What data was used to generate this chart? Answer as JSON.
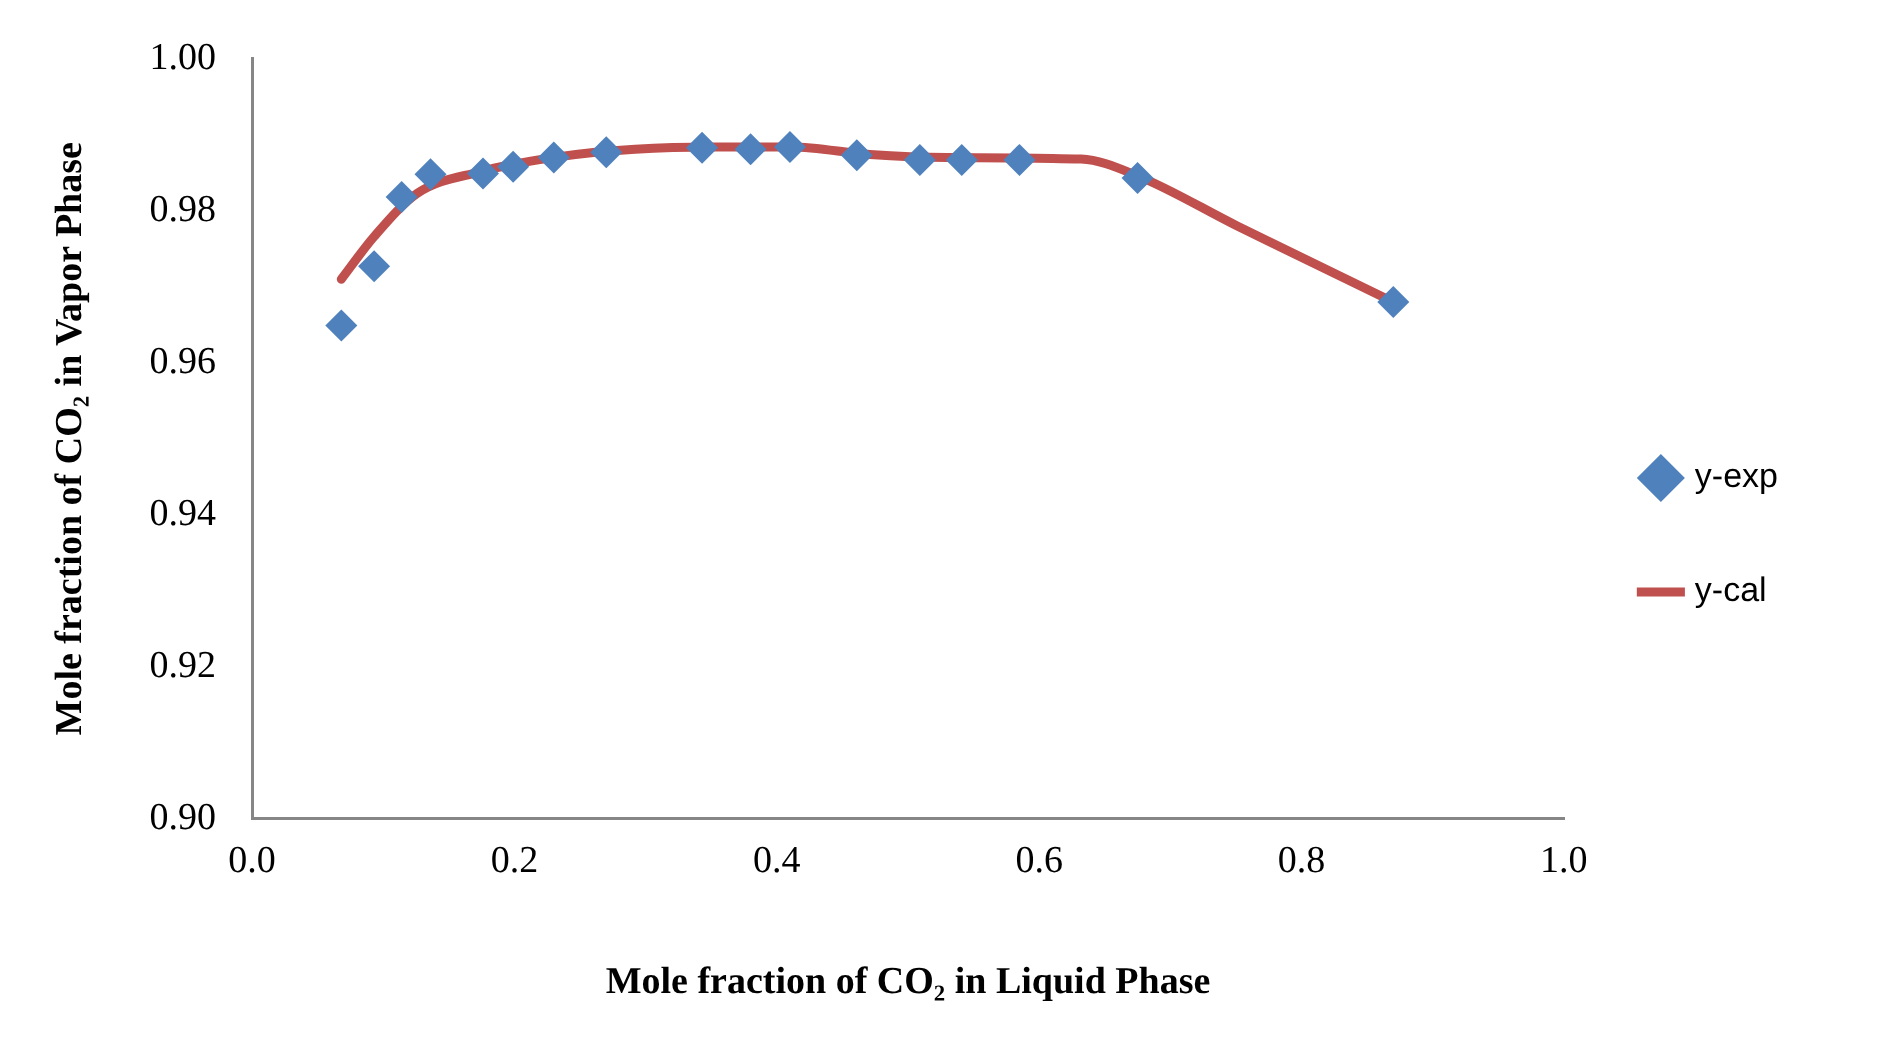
{
  "chart_data": {
    "type": "scatter",
    "xlabel": "Mole fraction of CO₂ in Liquid Phase",
    "ylabel": "Mole fraction of CO₂ in Vapor Phase",
    "xlim": [
      0,
      1
    ],
    "xticks": [
      {
        "value": 0,
        "label": "0.0"
      },
      0.2,
      0.4,
      0.6,
      0.8,
      {
        "value": 1,
        "label": "1.0"
      }
    ],
    "ylim": [
      0.9,
      1
    ],
    "yticks": [
      {
        "value": 0.9,
        "label": "0.90"
      },
      0.92,
      0.94,
      0.96,
      0.98,
      {
        "value": 1,
        "label": "1.00"
      }
    ],
    "grid": false,
    "legend": "right",
    "series": [
      {
        "name": "y-exp",
        "type": "scatter",
        "marker": "diamond",
        "color": "#4f81bd",
        "x": [
          0.068,
          0.093,
          0.114,
          0.136,
          0.176,
          0.199,
          0.23,
          0.27,
          0.343,
          0.38,
          0.41,
          0.461,
          0.509,
          0.541,
          0.585,
          0.675,
          0.87
        ],
        "values": [
          0.9649,
          0.9727,
          0.9818,
          0.9848,
          0.9849,
          0.9858,
          0.987,
          0.9877,
          0.9883,
          0.9881,
          0.9884,
          0.9873,
          0.9867,
          0.9867,
          0.9867,
          0.9843,
          0.968
        ]
      },
      {
        "name": "y-cal",
        "type": "line",
        "marker": "none",
        "line_style": "solid",
        "color": "#c0504d",
        "x": [
          0.068,
          0.093,
          0.126,
          0.173,
          0.233,
          0.292,
          0.352,
          0.411,
          0.471,
          0.53,
          0.632,
          0.675,
          0.751,
          0.87
        ],
        "values": [
          0.971,
          0.9766,
          0.9823,
          0.9851,
          0.9871,
          0.9881,
          0.9884,
          0.9884,
          0.9874,
          0.987,
          0.9868,
          0.9846,
          0.978,
          0.968
        ]
      }
    ]
  }
}
